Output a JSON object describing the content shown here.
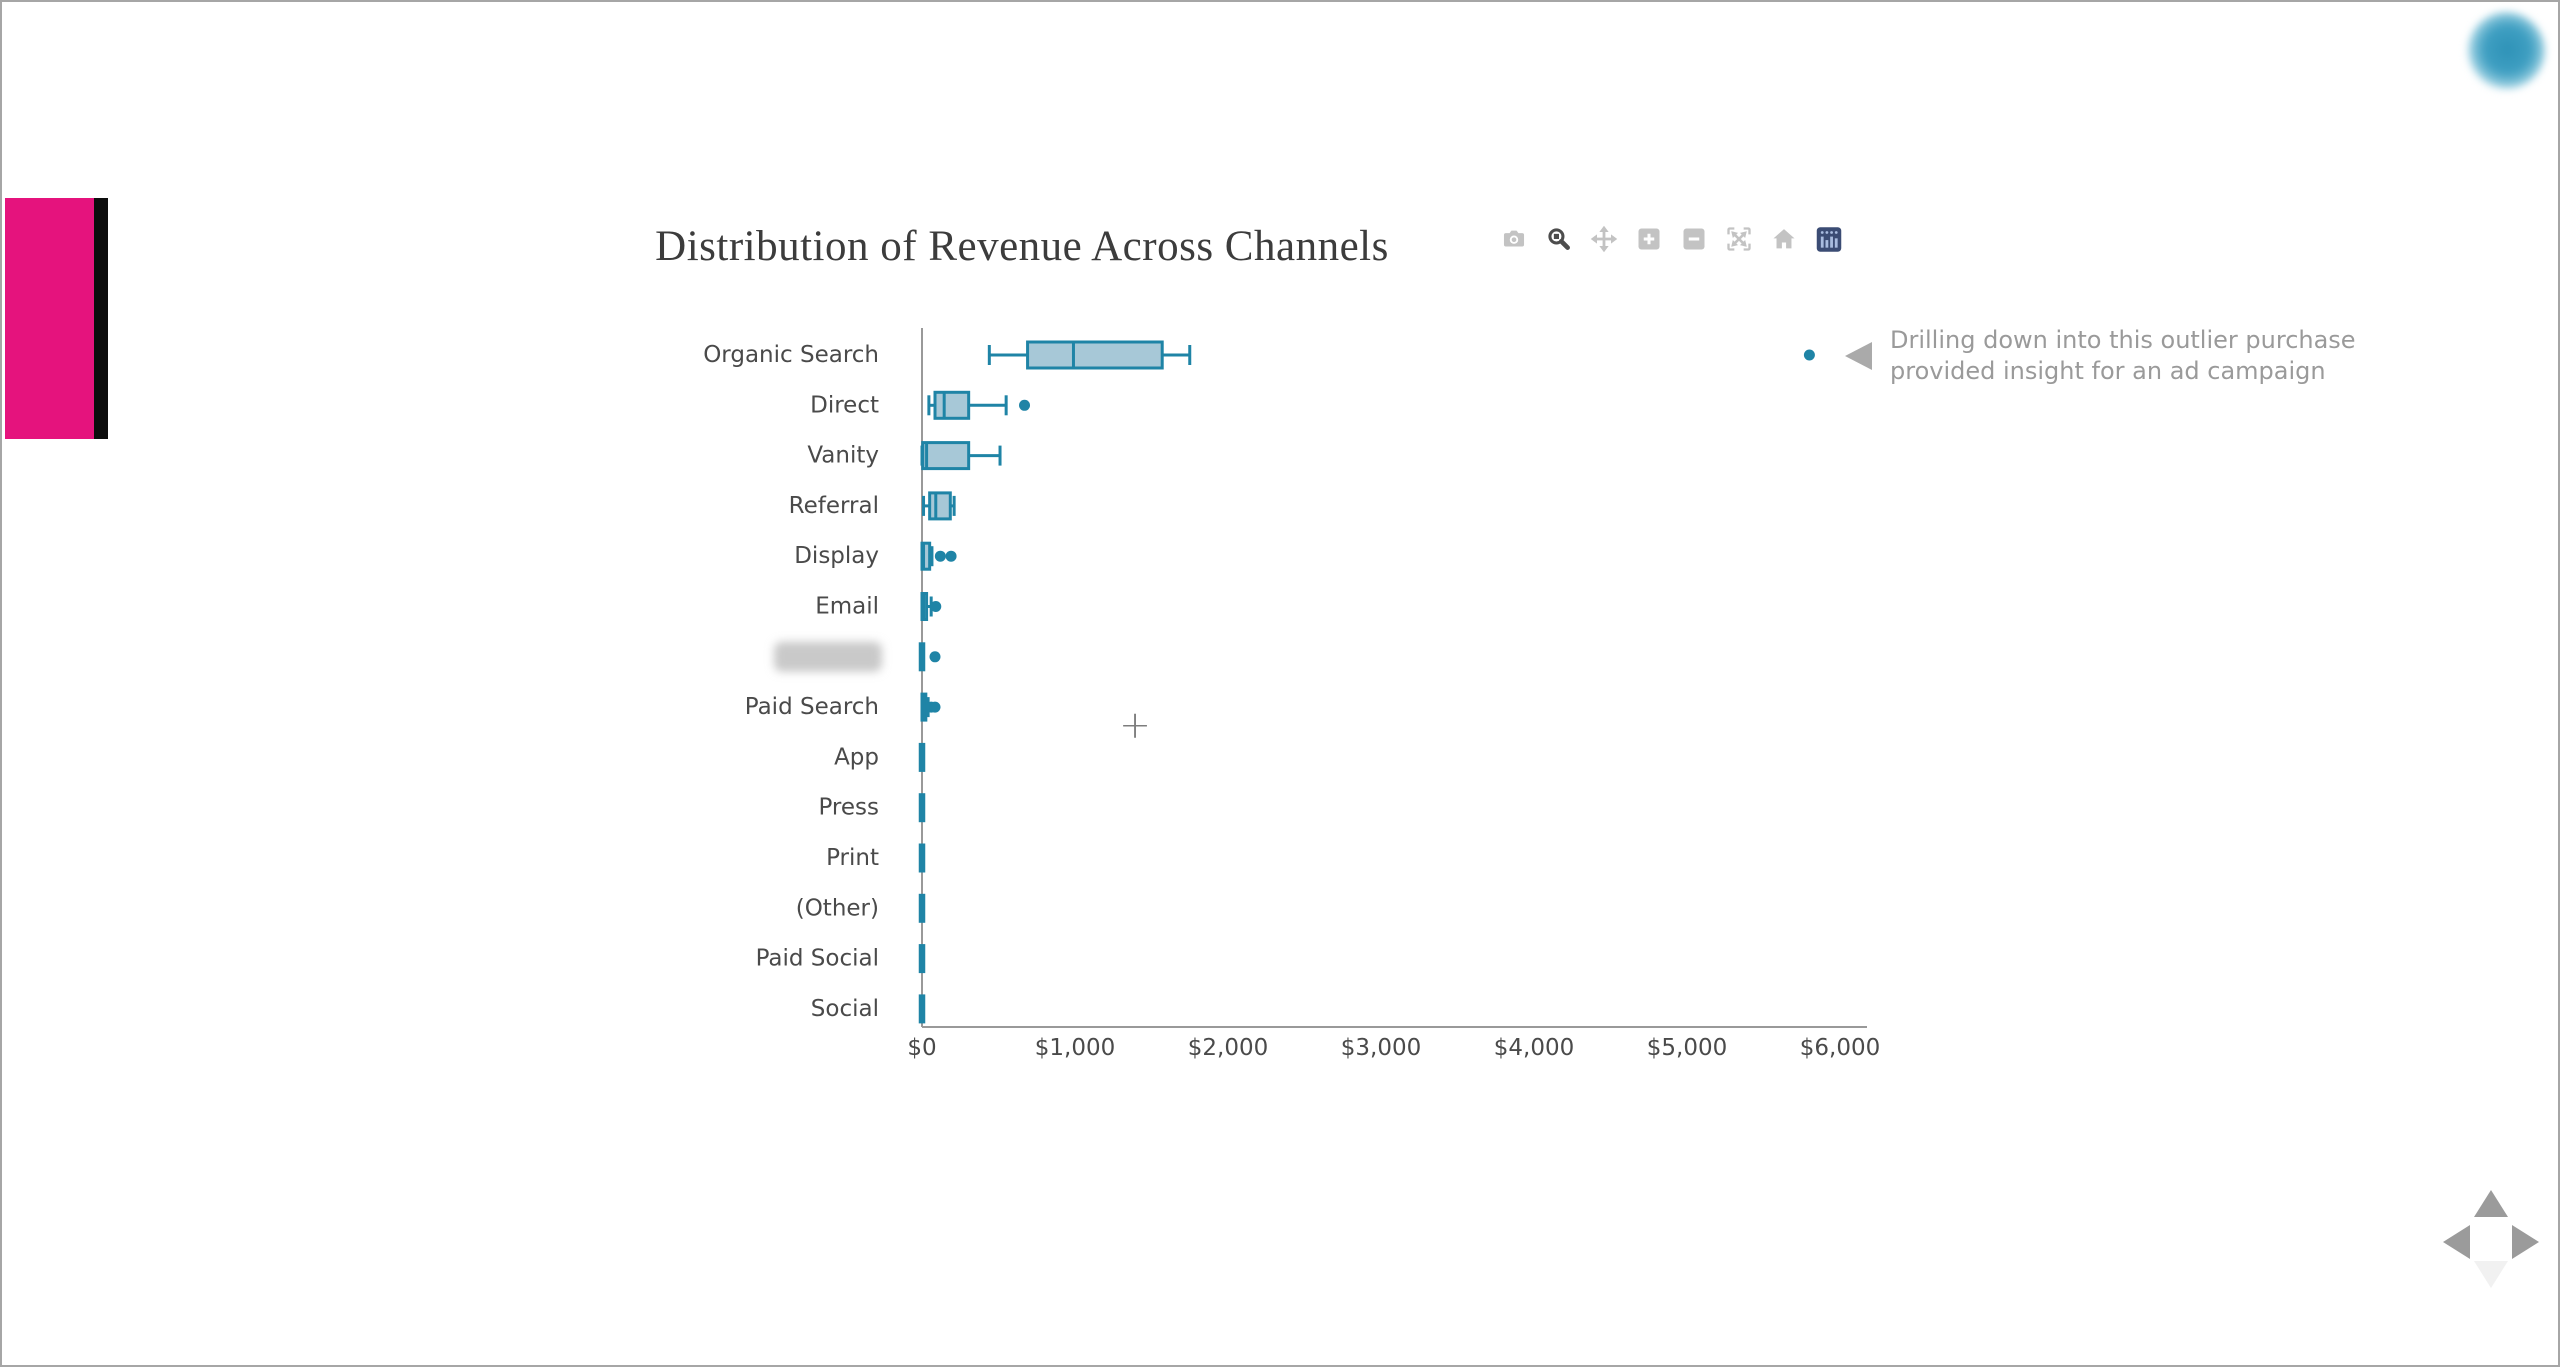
{
  "title": "Distribution of Revenue Across Channels",
  "colors": {
    "box_line": "#1f84a6",
    "box_fill": "#a7c8d7",
    "axis_line": "#999999",
    "axis_text": "#4a4a4a",
    "pink_bar": "#e5137d",
    "black_strip": "#0d0d0d",
    "modebar_idle": "#c3c3c3",
    "modebar_active": "#4d4d4d",
    "logo_bg": "#3b4c74",
    "logo_glyph": "#a9bcdf",
    "annotation_gray": "#9a9a9a"
  },
  "modebar": {
    "icons": [
      "camera-icon",
      "zoom-icon",
      "pan-icon",
      "zoom-in-icon",
      "zoom-out-icon",
      "autoscale-icon",
      "home-icon",
      "plotly-logo-icon"
    ]
  },
  "annotation": {
    "line1": "Drilling down into this outlier purchase",
    "line2": "provided insight for an ad campaign"
  },
  "cursor": {
    "glyph": "+"
  },
  "chart_data": {
    "type": "box",
    "orientation": "horizontal",
    "title": "Distribution of Revenue Across Channels",
    "xlabel": "",
    "ylabel": "",
    "xlim": [
      0,
      6200
    ],
    "grid": false,
    "tick_values": [
      0,
      1000,
      2000,
      3000,
      4000,
      5000,
      6000
    ],
    "tick_labels": [
      "$0",
      "$1,000",
      "$2,000",
      "$3,000",
      "$4,000",
      "$5,000",
      "$6,000"
    ],
    "annotation": {
      "text": "Drilling down into this outlier purchase provided insight for an ad campaign",
      "target_category": "Organic Search",
      "target_value": 5800
    },
    "series": [
      {
        "label": "Organic Search",
        "redacted": false,
        "box": {
          "low": 440,
          "q1": 690,
          "median": 990,
          "q3": 1570,
          "high": 1750
        },
        "outliers": [
          5800
        ]
      },
      {
        "label": "Direct",
        "redacted": false,
        "box": {
          "low": 45,
          "q1": 85,
          "median": 145,
          "q3": 305,
          "high": 550
        },
        "outliers": [
          670
        ]
      },
      {
        "label": "Vanity",
        "redacted": false,
        "box": {
          "low": 0,
          "q1": 5,
          "median": 30,
          "q3": 305,
          "high": 510
        },
        "outliers": []
      },
      {
        "label": "Referral",
        "redacted": false,
        "box": {
          "low": 10,
          "q1": 50,
          "median": 90,
          "q3": 185,
          "high": 210
        },
        "outliers": []
      },
      {
        "label": "Display",
        "redacted": false,
        "box": {
          "low": 0,
          "q1": 0,
          "median": 10,
          "q3": 50,
          "high": 65
        },
        "outliers": [
          120,
          190
        ]
      },
      {
        "label": "Email",
        "redacted": false,
        "box": {
          "low": 0,
          "q1": 0,
          "median": 10,
          "q3": 30,
          "high": 60
        },
        "outliers": [
          90
        ]
      },
      {
        "label": "",
        "redacted": true,
        "box": {
          "low": 0,
          "q1": 0,
          "median": 0,
          "q3": 0,
          "high": 0
        },
        "outliers": [
          85
        ]
      },
      {
        "label": "Paid Search",
        "redacted": false,
        "box": {
          "low": 0,
          "q1": 0,
          "median": 10,
          "q3": 25,
          "high": 40
        },
        "outliers": [
          60,
          85
        ]
      },
      {
        "label": "App",
        "redacted": false,
        "box": {
          "low": 0,
          "q1": 0,
          "median": 0,
          "q3": 0,
          "high": 0
        },
        "outliers": []
      },
      {
        "label": "Press",
        "redacted": false,
        "box": {
          "low": 0,
          "q1": 0,
          "median": 0,
          "q3": 0,
          "high": 0
        },
        "outliers": []
      },
      {
        "label": "Print",
        "redacted": false,
        "box": {
          "low": 0,
          "q1": 0,
          "median": 0,
          "q3": 0,
          "high": 0
        },
        "outliers": []
      },
      {
        "label": "(Other)",
        "redacted": false,
        "box": {
          "low": 0,
          "q1": 0,
          "median": 0,
          "q3": 0,
          "high": 0
        },
        "outliers": []
      },
      {
        "label": "Paid Social",
        "redacted": false,
        "box": {
          "low": 0,
          "q1": 0,
          "median": 0,
          "q3": 0,
          "high": 0
        },
        "outliers": []
      },
      {
        "label": "Social",
        "redacted": false,
        "box": {
          "low": 0,
          "q1": 0,
          "median": 0,
          "q3": 0,
          "high": 0
        },
        "outliers": []
      }
    ]
  }
}
